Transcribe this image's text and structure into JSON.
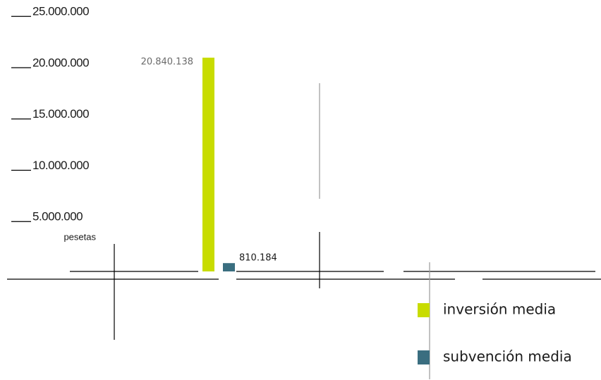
{
  "chart_data": {
    "type": "bar",
    "unit": "pesetas",
    "y_ticks": [
      {
        "value": 25000000,
        "label": "25.000.000"
      },
      {
        "value": 20000000,
        "label": "20.000.000"
      },
      {
        "value": 15000000,
        "label": "15.000.000"
      },
      {
        "value": 10000000,
        "label": "10.000.000"
      },
      {
        "value": 5000000,
        "label": "5.000.000"
      }
    ],
    "ylim": [
      0,
      25000000
    ],
    "series": [
      {
        "name": "inversión media",
        "value": 20840138,
        "value_label": "20.840.138",
        "color": "#c8dc00"
      },
      {
        "name": "subvención media",
        "value": 810184,
        "value_label": "810.184",
        "color": "#3a6e80"
      }
    ],
    "grid": false,
    "legend_position": "bottom-right"
  }
}
